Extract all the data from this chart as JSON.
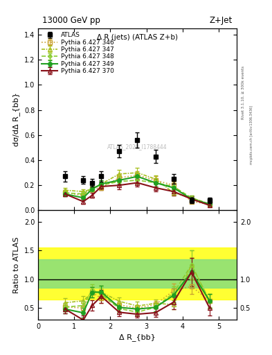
{
  "title_top": "13000 GeV pp",
  "title_right": "Z+Jet",
  "subplot_title": "Δ R (jets) (ATLAS Z+b)",
  "ylabel_main": "dσ/dΔ R_{bb}",
  "ylabel_ratio": "Ratio to ATLAS",
  "xlabel": "Δ R_{bb}",
  "watermark": "ATLAS_2020_I1788444",
  "rivet_label": "Rivet 3.1.10, ≥ 300k events",
  "mcplots_label": "mcplots.cern.ch [arXiv:1306.3436]",
  "x_pts": [
    0.75,
    1.25,
    1.5,
    1.75,
    2.25,
    2.75,
    3.25,
    3.75,
    4.25,
    4.75
  ],
  "y_atlas": [
    0.27,
    0.24,
    0.22,
    0.27,
    0.47,
    0.56,
    0.43,
    0.25,
    0.08,
    0.08
  ],
  "y_atlas_err": [
    0.04,
    0.03,
    0.03,
    0.04,
    0.05,
    0.06,
    0.05,
    0.04,
    0.02,
    0.02
  ],
  "y_346": [
    0.14,
    0.12,
    0.17,
    0.18,
    0.26,
    0.28,
    0.24,
    0.2,
    0.07,
    0.05
  ],
  "y_347": [
    0.16,
    0.15,
    0.17,
    0.21,
    0.29,
    0.3,
    0.25,
    0.14,
    0.1,
    0.05
  ],
  "y_348": [
    0.14,
    0.13,
    0.18,
    0.2,
    0.23,
    0.24,
    0.22,
    0.19,
    0.1,
    0.05
  ],
  "y_349": [
    0.13,
    0.1,
    0.17,
    0.21,
    0.24,
    0.27,
    0.22,
    0.18,
    0.09,
    0.05
  ],
  "y_370": [
    0.13,
    0.07,
    0.12,
    0.19,
    0.2,
    0.22,
    0.18,
    0.15,
    0.09,
    0.04
  ],
  "y_346_err": [
    0.02,
    0.02,
    0.02,
    0.02,
    0.03,
    0.03,
    0.03,
    0.03,
    0.01,
    0.01
  ],
  "y_347_err": [
    0.02,
    0.02,
    0.02,
    0.03,
    0.03,
    0.04,
    0.03,
    0.02,
    0.02,
    0.01
  ],
  "y_348_err": [
    0.02,
    0.02,
    0.02,
    0.03,
    0.03,
    0.03,
    0.03,
    0.03,
    0.02,
    0.01
  ],
  "y_349_err": [
    0.02,
    0.02,
    0.02,
    0.03,
    0.03,
    0.03,
    0.03,
    0.03,
    0.02,
    0.01
  ],
  "y_370_err": [
    0.02,
    0.02,
    0.02,
    0.03,
    0.03,
    0.03,
    0.03,
    0.03,
    0.02,
    0.01
  ],
  "color_346": "#c8a030",
  "color_347": "#a8c020",
  "color_348": "#88cc30",
  "color_349": "#20a020",
  "color_370": "#881018",
  "band_green_lo": 0.85,
  "band_green_hi": 1.35,
  "band_yellow_lo": 0.65,
  "band_yellow_hi": 1.55,
  "xlim": [
    0,
    5.5
  ],
  "ylim_main": [
    0,
    1.45
  ],
  "ylim_ratio": [
    0.3,
    2.2
  ],
  "yticks_main": [
    0.0,
    0.2,
    0.4,
    0.6,
    0.8,
    1.0,
    1.2,
    1.4
  ],
  "yticks_ratio": [
    0.5,
    1.0,
    1.5,
    2.0
  ],
  "xticks": [
    0,
    1,
    2,
    3,
    4,
    5
  ]
}
